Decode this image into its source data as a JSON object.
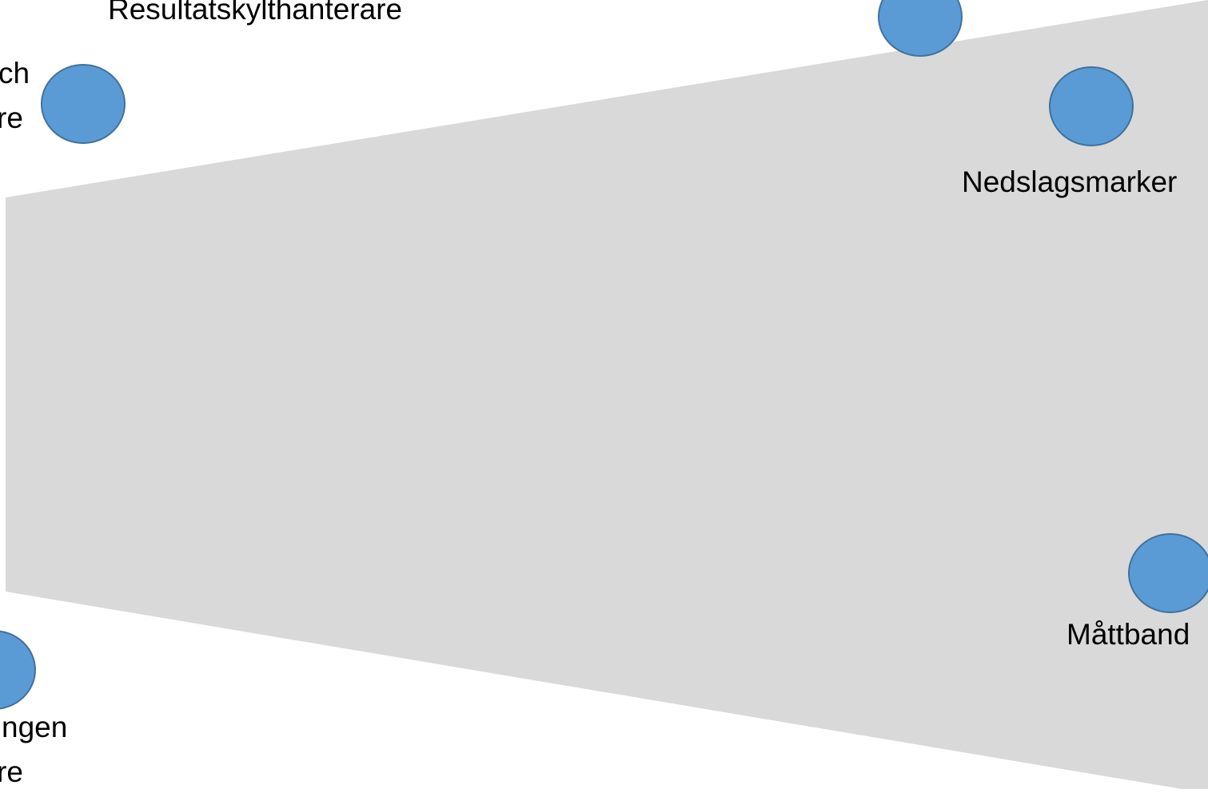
{
  "colors": {
    "background": "#ffffff",
    "field": "#d9d9d9",
    "marker_fill": "#5b9bd5",
    "marker_stroke": "#41719c",
    "text": "#000000"
  },
  "field": {
    "name": "field-area"
  },
  "markers": [
    {
      "id": "resultatskylthanterare",
      "label": "Resultatskylthanterare",
      "icon": "circle"
    },
    {
      "id": "left-top",
      "label_lines": [
        "ch",
        "re"
      ],
      "icon": "circle"
    },
    {
      "id": "nedslagsmarker",
      "label": "Nedslagsmarker",
      "icon": "circle"
    },
    {
      "id": "mattband",
      "label": "Måttband",
      "icon": "circle"
    },
    {
      "id": "bottom-left",
      "label_lines": [
        "ngen",
        "re"
      ],
      "icon": "circle"
    },
    {
      "id": "top-center",
      "icon": "circle"
    }
  ]
}
